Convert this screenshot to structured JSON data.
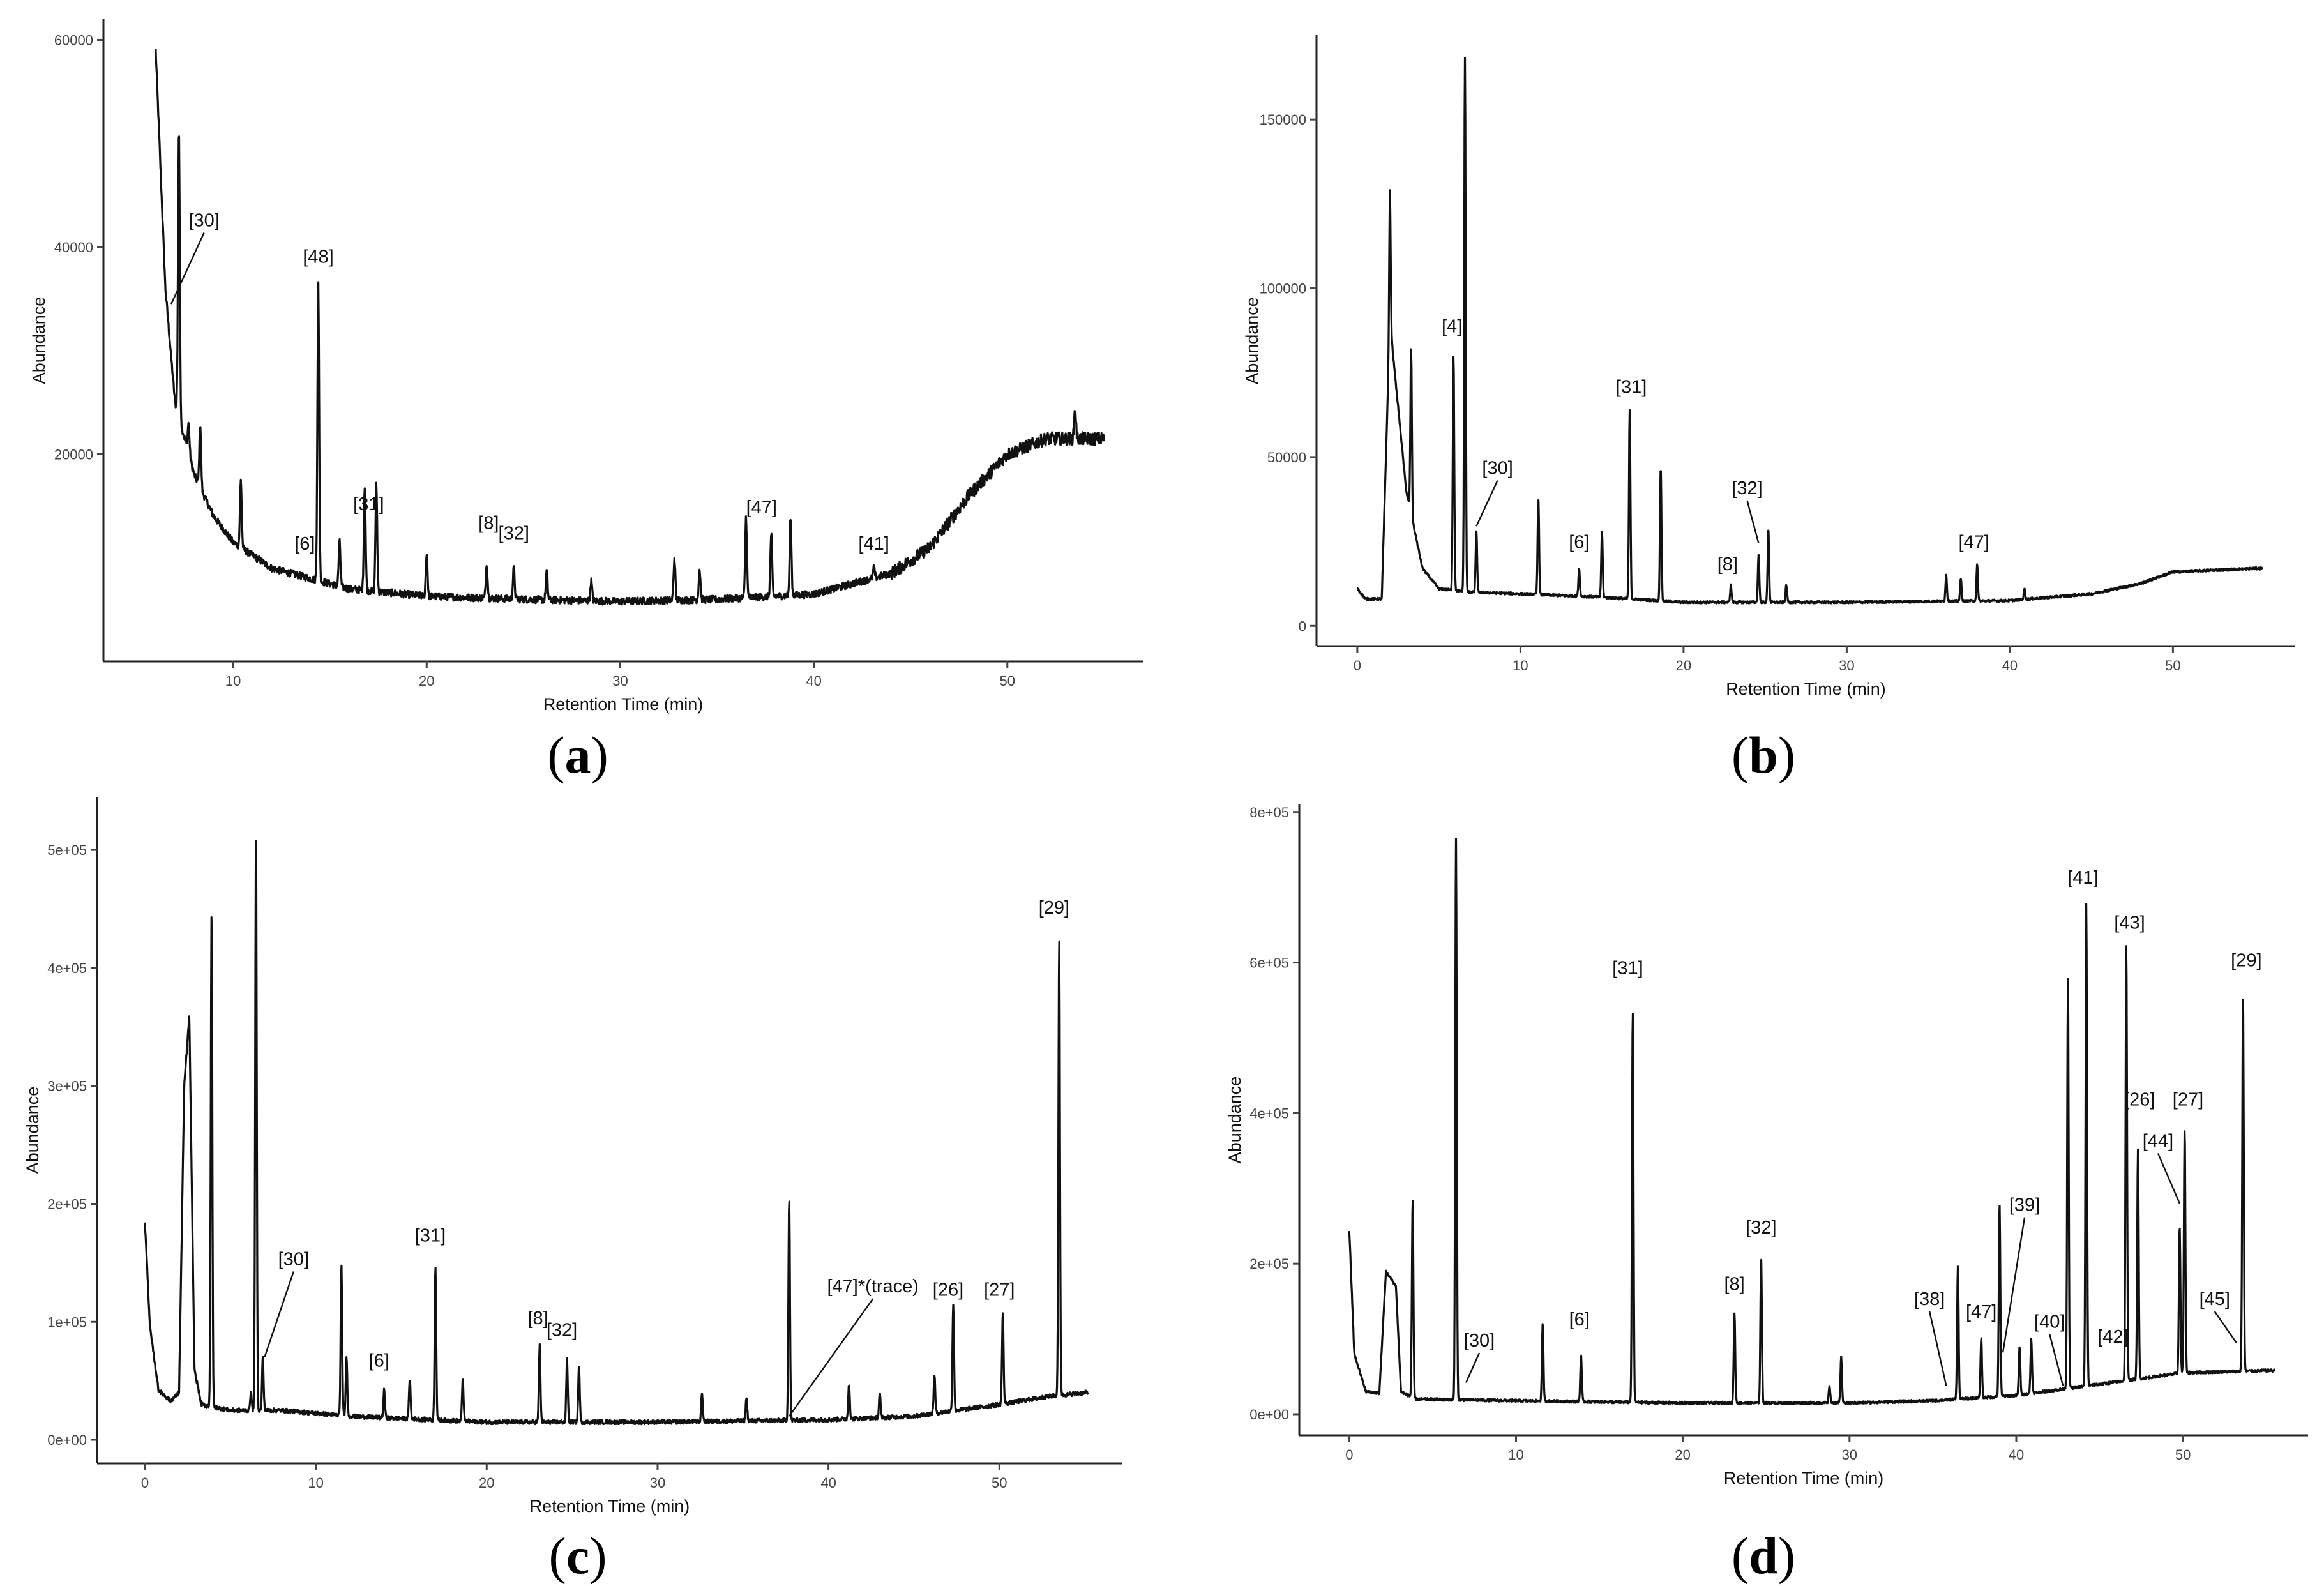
{
  "chart_data": [
    {
      "panel": "a",
      "caption": "a",
      "type": "line",
      "xlabel": "Retention Time (min)",
      "ylabel": "Abundance",
      "xlim": [
        3.3,
        57.0
      ],
      "ylim": [
        0,
        62000
      ],
      "x_ticks": [
        10,
        20,
        30,
        40,
        50
      ],
      "y_ticks": [
        20000,
        40000,
        60000
      ],
      "y_tick_labels": [
        "20000",
        "40000",
        "60000"
      ],
      "start_x": 6.0,
      "baseline": [
        [
          6.0,
          59000
        ],
        [
          6.5,
          36000
        ],
        [
          7.0,
          25000
        ],
        [
          8.0,
          18000
        ],
        [
          9.0,
          14000
        ],
        [
          10.0,
          11500
        ],
        [
          12.0,
          9000
        ],
        [
          14.0,
          8000
        ],
        [
          16.0,
          7000
        ],
        [
          20.0,
          6300
        ],
        [
          25.0,
          6000
        ],
        [
          30.0,
          5800
        ],
        [
          35.0,
          6000
        ],
        [
          40.0,
          6500
        ],
        [
          44.0,
          8500
        ],
        [
          46.0,
          11000
        ],
        [
          48.0,
          16000
        ],
        [
          50.0,
          20000
        ],
        [
          52.0,
          21500
        ],
        [
          55.0,
          21500
        ]
      ],
      "noise": 700,
      "peaks": [
        [
          6.6,
          33000
        ],
        [
          7.2,
          51500
        ],
        [
          7.7,
          23000
        ],
        [
          8.3,
          23000
        ],
        [
          10.4,
          17500
        ],
        [
          14.4,
          36500
        ],
        [
          15.5,
          11500
        ],
        [
          16.8,
          17000
        ],
        [
          17.4,
          17000
        ],
        [
          20.0,
          10500
        ],
        [
          23.1,
          9500
        ],
        [
          24.5,
          9000
        ],
        [
          26.2,
          8700
        ],
        [
          28.5,
          7800
        ],
        [
          32.8,
          10000
        ],
        [
          34.1,
          8900
        ],
        [
          36.5,
          14000
        ],
        [
          37.8,
          12300
        ],
        [
          38.8,
          14000
        ],
        [
          43.1,
          9000
        ],
        [
          53.5,
          24500
        ]
      ],
      "annotations": [
        {
          "label": "[30]",
          "x": 8.5,
          "y": 42000,
          "to_x": 6.8,
          "to_y": 34500
        },
        {
          "label": "[48]",
          "x": 14.4,
          "y": 38500
        },
        {
          "label": "[6]",
          "x": 13.7,
          "y": 10800
        },
        {
          "label": "[31]",
          "x": 17.0,
          "y": 14600
        },
        {
          "label": "[8]",
          "x": 23.2,
          "y": 12800
        },
        {
          "label": "[32]",
          "x": 24.5,
          "y": 11800
        },
        {
          "label": "[47]",
          "x": 37.3,
          "y": 14300
        },
        {
          "label": "[41]",
          "x": 43.1,
          "y": 10800
        }
      ]
    },
    {
      "panel": "b",
      "caption": "b",
      "type": "line",
      "xlabel": "Retention Time (min)",
      "ylabel": "Abundance",
      "xlim": [
        -2.5,
        57.5
      ],
      "ylim": [
        -6000,
        175000
      ],
      "x_ticks": [
        0,
        10,
        20,
        30,
        40,
        50
      ],
      "y_ticks": [
        0,
        50000,
        100000,
        150000
      ],
      "y_tick_labels": [
        "0",
        "50000",
        "100000",
        "150000"
      ],
      "start_x": 0.0,
      "baseline": [
        [
          0.0,
          11000
        ],
        [
          0.5,
          8000
        ],
        [
          1.5,
          8000
        ],
        [
          2.0,
          90000
        ],
        [
          3.0,
          40000
        ],
        [
          4.0,
          17000
        ],
        [
          5.0,
          11000
        ],
        [
          7.0,
          10000
        ],
        [
          10.0,
          9500
        ],
        [
          15.0,
          8500
        ],
        [
          20.0,
          7000
        ],
        [
          30.0,
          7000
        ],
        [
          40.0,
          7500
        ],
        [
          45.0,
          9500
        ],
        [
          48.0,
          12500
        ],
        [
          50.0,
          16000
        ],
        [
          55.0,
          17000
        ]
      ],
      "noise": 700,
      "peaks": [
        [
          2.0,
          129000
        ],
        [
          3.3,
          82000
        ],
        [
          5.9,
          80000
        ],
        [
          6.6,
          168000
        ],
        [
          7.3,
          28000
        ],
        [
          11.1,
          38000
        ],
        [
          13.6,
          17000
        ],
        [
          15.0,
          28000
        ],
        [
          16.7,
          64000
        ],
        [
          18.6,
          47000
        ],
        [
          22.9,
          12000
        ],
        [
          24.6,
          21000
        ],
        [
          25.2,
          29000
        ],
        [
          26.3,
          12000
        ],
        [
          36.1,
          15000
        ],
        [
          37.0,
          14000
        ],
        [
          38.0,
          18000
        ],
        [
          40.9,
          11000
        ]
      ],
      "annotations": [
        {
          "label": "[4]",
          "x": 5.8,
          "y": 87000
        },
        {
          "label": "[30]",
          "x": 8.6,
          "y": 45000,
          "to_x": 7.3,
          "to_y": 29500
        },
        {
          "label": "[31]",
          "x": 16.8,
          "y": 69000
        },
        {
          "label": "[6]",
          "x": 13.6,
          "y": 23000
        },
        {
          "label": "[32]",
          "x": 23.9,
          "y": 39000,
          "to_x": 24.6,
          "to_y": 24500
        },
        {
          "label": "[8]",
          "x": 22.7,
          "y": 16500
        },
        {
          "label": "[47]",
          "x": 37.8,
          "y": 23000
        }
      ]
    },
    {
      "panel": "c",
      "caption": "c",
      "type": "line",
      "xlabel": "Retention Time (min)",
      "ylabel": "Abundance",
      "xlim": [
        -2.8,
        57.2
      ],
      "ylim": [
        -20000,
        545000
      ],
      "x_ticks": [
        0,
        10,
        20,
        30,
        40,
        50
      ],
      "y_ticks": [
        0,
        100000,
        200000,
        300000,
        400000,
        500000
      ],
      "y_tick_labels": [
        "0e+00",
        "1e+05",
        "2e+05",
        "3e+05",
        "4e+05",
        "5e+05"
      ],
      "start_x": 0.0,
      "baseline": [
        [
          0.0,
          185000
        ],
        [
          0.3,
          95000
        ],
        [
          0.8,
          42000
        ],
        [
          1.5,
          33000
        ],
        [
          2.0,
          40000
        ],
        [
          2.3,
          300000
        ],
        [
          2.6,
          360000
        ],
        [
          2.9,
          60000
        ],
        [
          3.3,
          30000
        ],
        [
          5.0,
          25000
        ],
        [
          8.0,
          25000
        ],
        [
          12.0,
          20000
        ],
        [
          20.0,
          15000
        ],
        [
          30.0,
          15000
        ],
        [
          40.0,
          17000
        ],
        [
          45.0,
          20000
        ],
        [
          50.0,
          30000
        ],
        [
          53.0,
          37000
        ],
        [
          55.0,
          40000
        ]
      ],
      "noise": 3500,
      "peaks": [
        [
          3.9,
          445000
        ],
        [
          6.2,
          40000
        ],
        [
          6.5,
          520000
        ],
        [
          6.9,
          70000
        ],
        [
          11.5,
          147000
        ],
        [
          11.8,
          70000
        ],
        [
          14.0,
          42000
        ],
        [
          15.5,
          52000
        ],
        [
          17.0,
          148000
        ],
        [
          18.6,
          52000
        ],
        [
          23.1,
          80000
        ],
        [
          24.7,
          68000
        ],
        [
          25.4,
          62000
        ],
        [
          32.6,
          40000
        ],
        [
          35.2,
          36000
        ],
        [
          37.7,
          205000
        ],
        [
          41.2,
          48000
        ],
        [
          43.0,
          40000
        ],
        [
          46.2,
          55000
        ],
        [
          47.3,
          115000
        ],
        [
          50.2,
          108000
        ],
        [
          53.5,
          422000
        ]
      ],
      "annotations": [
        {
          "label": "[30]",
          "x": 8.7,
          "y": 148000,
          "to_x": 7.0,
          "to_y": 70000
        },
        {
          "label": "[6]",
          "x": 13.7,
          "y": 62000
        },
        {
          "label": "[31]",
          "x": 16.7,
          "y": 168000
        },
        {
          "label": "[8]",
          "x": 23.0,
          "y": 98000
        },
        {
          "label": "[32]",
          "x": 24.4,
          "y": 88000
        },
        {
          "label": "[47]*(trace)",
          "x": 42.6,
          "y": 125000,
          "to_x": 37.7,
          "to_y": 20000
        },
        {
          "label": "[26]",
          "x": 47.0,
          "y": 122000
        },
        {
          "label": "[27]",
          "x": 50.0,
          "y": 122000
        },
        {
          "label": "[29]",
          "x": 53.2,
          "y": 446000
        }
      ]
    },
    {
      "panel": "d",
      "caption": "d",
      "type": "line",
      "xlabel": "Retention Time (min)",
      "ylabel": "Abundance",
      "xlim": [
        -3.0,
        57.5
      ],
      "ylim": [
        -28000,
        810000
      ],
      "x_ticks": [
        0,
        10,
        20,
        30,
        40,
        50
      ],
      "y_ticks": [
        0,
        200000,
        400000,
        600000,
        800000
      ],
      "y_tick_labels": [
        "0e+00",
        "2e+05",
        "4e+05",
        "6e+05",
        "8e+05"
      ],
      "start_x": 0.0,
      "baseline": [
        [
          0.0,
          245000
        ],
        [
          0.3,
          80000
        ],
        [
          1.0,
          30000
        ],
        [
          1.8,
          28000
        ],
        [
          2.2,
          190000
        ],
        [
          2.8,
          170000
        ],
        [
          3.1,
          30000
        ],
        [
          4.0,
          20000
        ],
        [
          10.0,
          18000
        ],
        [
          20.0,
          15000
        ],
        [
          30.0,
          15000
        ],
        [
          35.0,
          18000
        ],
        [
          40.0,
          25000
        ],
        [
          45.0,
          40000
        ],
        [
          50.0,
          55000
        ],
        [
          55.0,
          58000
        ]
      ],
      "noise": 3500,
      "peaks": [
        [
          3.8,
          285000
        ],
        [
          6.4,
          765000
        ],
        [
          11.6,
          120000
        ],
        [
          13.9,
          78000
        ],
        [
          17.0,
          535000
        ],
        [
          23.1,
          135000
        ],
        [
          24.7,
          208000
        ],
        [
          28.8,
          38000
        ],
        [
          29.5,
          75000
        ],
        [
          36.5,
          195000
        ],
        [
          37.9,
          100000
        ],
        [
          39.0,
          280000
        ],
        [
          40.2,
          90000
        ],
        [
          40.9,
          100000
        ],
        [
          43.1,
          580000
        ],
        [
          44.2,
          678000
        ],
        [
          46.6,
          625000
        ],
        [
          47.3,
          352000
        ],
        [
          49.8,
          250000
        ],
        [
          50.1,
          378000
        ],
        [
          53.6,
          558000
        ]
      ],
      "annotations": [
        {
          "label": "[30]",
          "x": 7.8,
          "y": 90000,
          "to_x": 7.0,
          "to_y": 42000
        },
        {
          "label": "[6]",
          "x": 13.8,
          "y": 118000
        },
        {
          "label": "[31]",
          "x": 16.7,
          "y": 585000
        },
        {
          "label": "[8]",
          "x": 23.1,
          "y": 165000
        },
        {
          "label": "[32]",
          "x": 24.7,
          "y": 240000
        },
        {
          "label": "[38]",
          "x": 34.8,
          "y": 145000,
          "to_x": 35.8,
          "to_y": 38000
        },
        {
          "label": "[47]",
          "x": 37.9,
          "y": 128000
        },
        {
          "label": "[39]",
          "x": 40.5,
          "y": 270000,
          "to_x": 39.2,
          "to_y": 82000
        },
        {
          "label": "[40]",
          "x": 42.0,
          "y": 115000,
          "to_x": 42.8,
          "to_y": 38000
        },
        {
          "label": "[42]",
          "x": 45.8,
          "y": 95000
        },
        {
          "label": "[41]",
          "x": 44.0,
          "y": 705000
        },
        {
          "label": "[43]",
          "x": 46.8,
          "y": 645000
        },
        {
          "label": "[26]",
          "x": 47.4,
          "y": 410000
        },
        {
          "label": "[27]",
          "x": 50.3,
          "y": 410000
        },
        {
          "label": "[44]",
          "x": 48.5,
          "y": 355000,
          "to_x": 49.8,
          "to_y": 280000
        },
        {
          "label": "[45]",
          "x": 51.9,
          "y": 145000,
          "to_x": 53.2,
          "to_y": 95000
        },
        {
          "label": "[29]",
          "x": 53.8,
          "y": 595000
        }
      ]
    }
  ]
}
